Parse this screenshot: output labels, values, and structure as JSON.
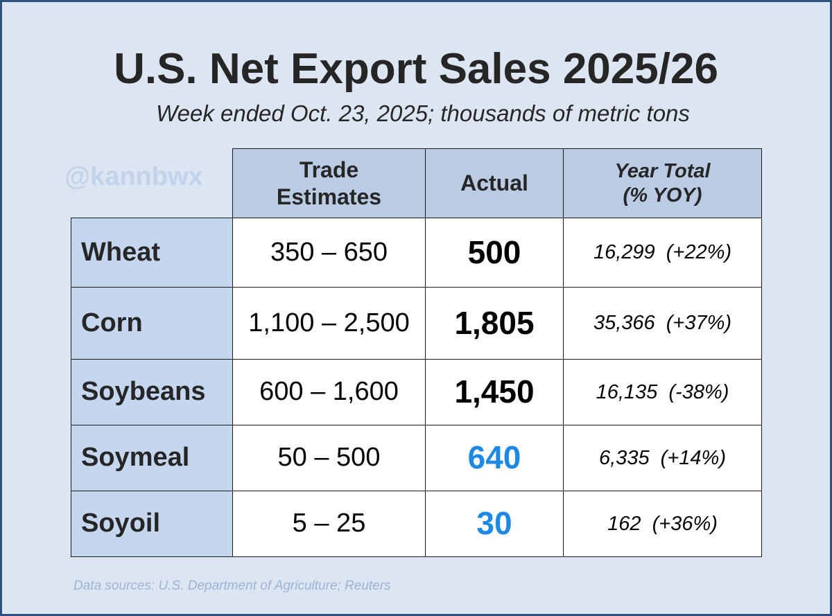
{
  "title": "U.S. Net Export Sales 2025/26",
  "subtitle": "Week ended Oct. 23, 2025; thousands of metric tons",
  "watermark": "@kannbwx",
  "source": "Data sources: U.S. Department of Agriculture; Reuters",
  "colors": {
    "background": "#dce6f2",
    "border": "#2f4f7f",
    "header_fill": "#b9cce4",
    "label_fill": "#c5d6ef",
    "highlight_blue": "#1e88e5"
  },
  "table": {
    "headers": {
      "estimates_line1": "Trade",
      "estimates_line2": "Estimates",
      "actual": "Actual",
      "total_line1": "Year Total",
      "total_line2": "(% YOY)"
    },
    "rows": [
      {
        "commodity": "Wheat",
        "estimates": "350 – 650",
        "actual": "500",
        "year_total": "16,299  (+22%)",
        "actual_color": "#000000"
      },
      {
        "commodity": "Corn",
        "estimates": "1,100 – 2,500",
        "actual": "1,805",
        "year_total": "35,366  (+37%)",
        "actual_color": "#000000"
      },
      {
        "commodity": "Soybeans",
        "estimates": "600 – 1,600",
        "actual": "1,450",
        "year_total": "16,135  (-38%)",
        "actual_color": "#000000"
      },
      {
        "commodity": "Soymeal",
        "estimates": "50 – 500",
        "actual": "640",
        "year_total": "6,335  (+14%)",
        "actual_color": "#1e88e5"
      },
      {
        "commodity": "Soyoil",
        "estimates": "5 – 25",
        "actual": "30",
        "year_total": "162  (+36%)",
        "actual_color": "#1e88e5"
      }
    ]
  }
}
